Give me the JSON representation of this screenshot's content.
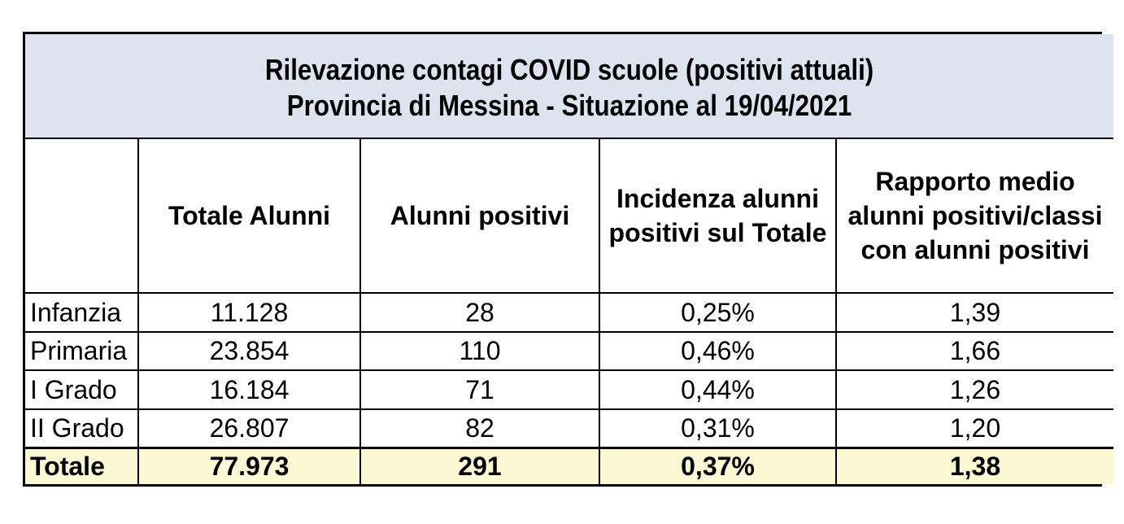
{
  "chart_data": {
    "type": "table",
    "title": "Rilevazione contagi COVID scuole (positivi attuali)",
    "subtitle": "Provincia di Messina - Situazione al 19/04/2021",
    "columns": [
      "",
      "Totale Alunni",
      "Alunni positivi",
      "Incidenza alunni positivi sul Totale",
      "Rapporto medio alunni positivi/classi con alunni positivi"
    ],
    "rows": [
      [
        "Infanzia",
        "11.128",
        "28",
        "0,25%",
        "1,39"
      ],
      [
        "Primaria",
        "23.854",
        "110",
        "0,46%",
        "1,66"
      ],
      [
        "I Grado",
        "16.184",
        "71",
        "0,44%",
        "1,26"
      ],
      [
        "II Grado",
        "26.807",
        "82",
        "0,31%",
        "1,20"
      ],
      [
        "Totale",
        "77.973",
        "291",
        "0,37%",
        "1,38"
      ]
    ],
    "numeric": {
      "categories": [
        "Infanzia",
        "Primaria",
        "I Grado",
        "II Grado"
      ],
      "totale_alunni": [
        11128,
        23854,
        16184,
        26807
      ],
      "alunni_positivi": [
        28,
        110,
        71,
        82
      ],
      "incidenza_pct": [
        0.25,
        0.46,
        0.44,
        0.31
      ],
      "rapporto_medio": [
        1.39,
        1.66,
        1.26,
        1.2
      ],
      "totals": {
        "totale_alunni": 77973,
        "alunni_positivi": 291,
        "incidenza_pct": 0.37,
        "rapporto_medio": 1.38
      }
    }
  },
  "colors": {
    "title_band_bg": "#dde4f0",
    "total_row_bg": "#fcf8d3",
    "border": "#000000",
    "text": "#000000"
  }
}
